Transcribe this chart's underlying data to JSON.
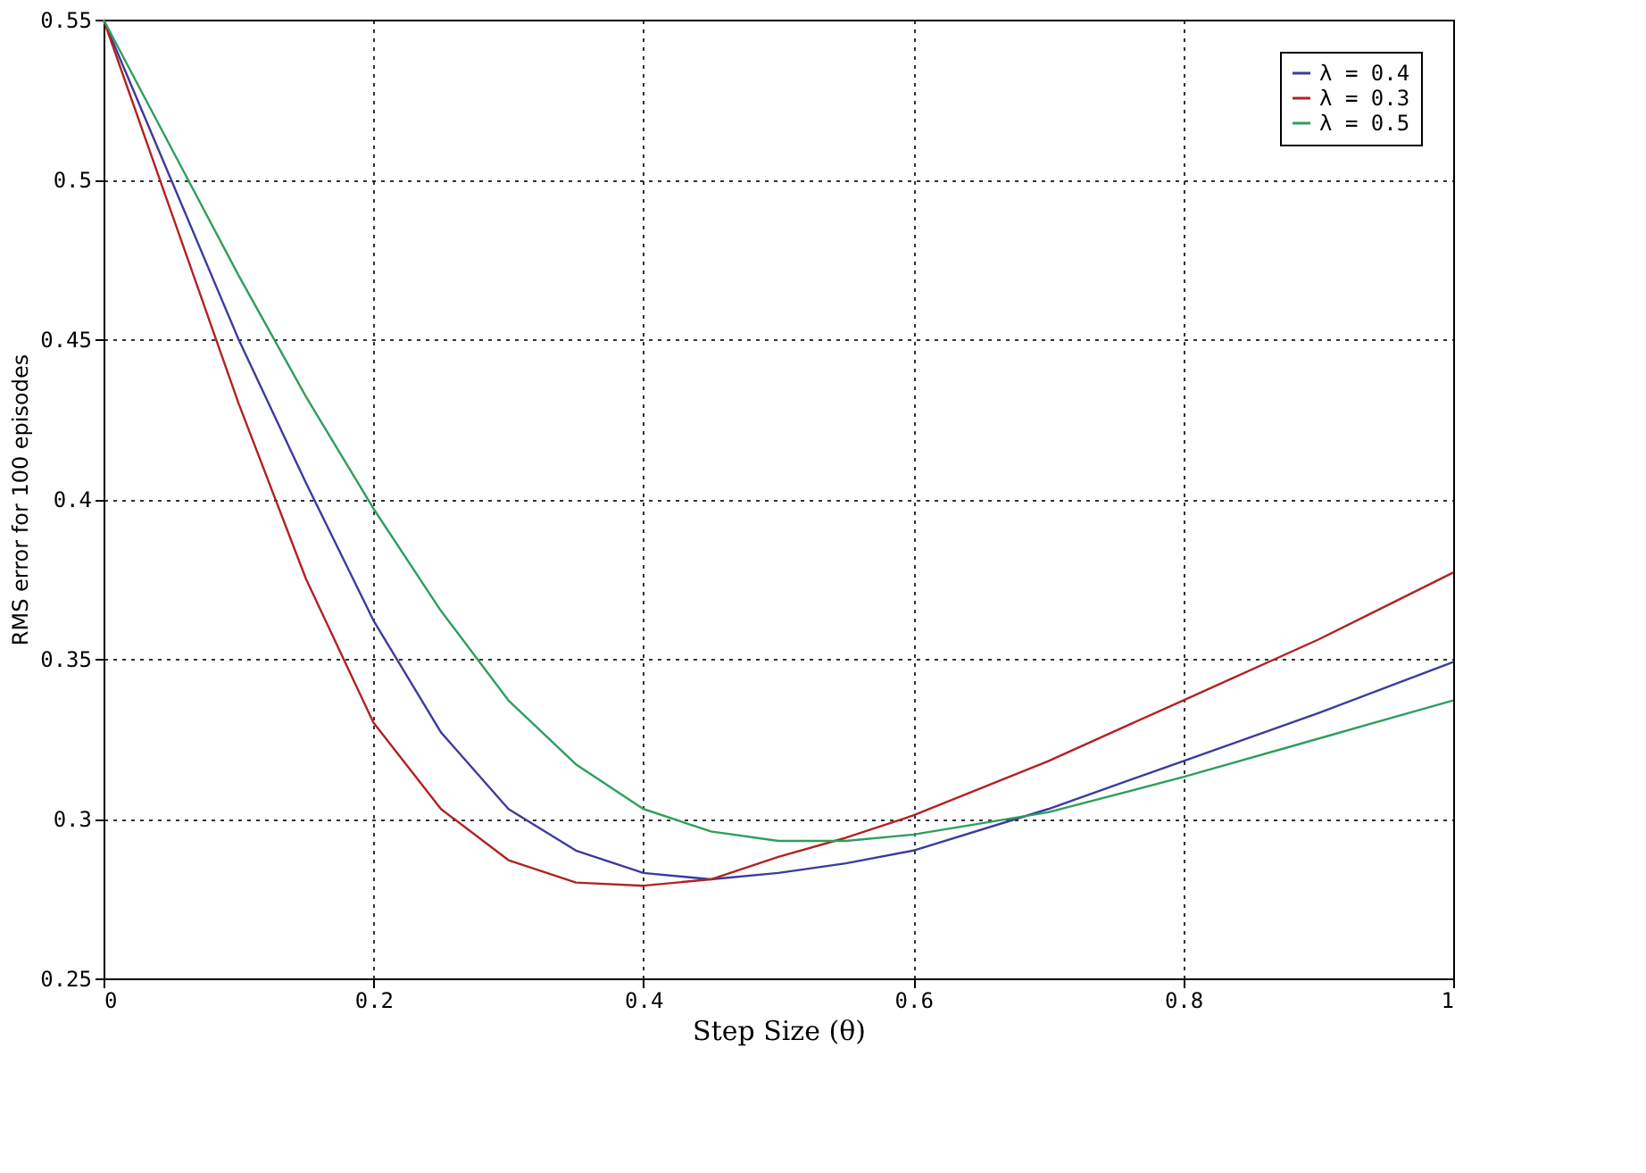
{
  "chart_data": {
    "type": "line",
    "xlabel": "Step Size (θ)",
    "ylabel": "RMS error for 100 episodes",
    "xlim": [
      0,
      1
    ],
    "ylim": [
      0.25,
      0.55
    ],
    "xticks": [
      0,
      0.2,
      0.4,
      0.6,
      0.8,
      1
    ],
    "yticks": [
      0.25,
      0.3,
      0.35,
      0.4,
      0.45,
      0.5,
      0.55
    ],
    "grid": true,
    "legend": "top right",
    "marker": "none",
    "line_style": "solid",
    "x": [
      0,
      0.05,
      0.1,
      0.15,
      0.2,
      0.25,
      0.3,
      0.35,
      0.4,
      0.45,
      0.5,
      0.55,
      0.6,
      0.7,
      0.8,
      0.9,
      1.0
    ],
    "series": [
      {
        "name": "λ = 0.4",
        "color": "#3b3b9e",
        "values": [
          0.55,
          0.5,
          0.45,
          0.405,
          0.362,
          0.327,
          0.303,
          0.29,
          0.283,
          0.281,
          0.283,
          0.286,
          0.29,
          0.303,
          0.318,
          0.333,
          0.349
        ]
      },
      {
        "name": "λ = 0.3",
        "color": "#b22222",
        "values": [
          0.55,
          0.49,
          0.43,
          0.375,
          0.33,
          0.303,
          0.287,
          0.28,
          0.279,
          0.281,
          0.288,
          0.294,
          0.301,
          0.318,
          0.337,
          0.356,
          0.377
        ]
      },
      {
        "name": "λ = 0.5",
        "color": "#2e9e5e",
        "values": [
          0.55,
          0.51,
          0.47,
          0.432,
          0.397,
          0.365,
          0.337,
          0.317,
          0.303,
          0.296,
          0.293,
          0.293,
          0.295,
          0.302,
          0.313,
          0.325,
          0.337
        ]
      }
    ]
  }
}
